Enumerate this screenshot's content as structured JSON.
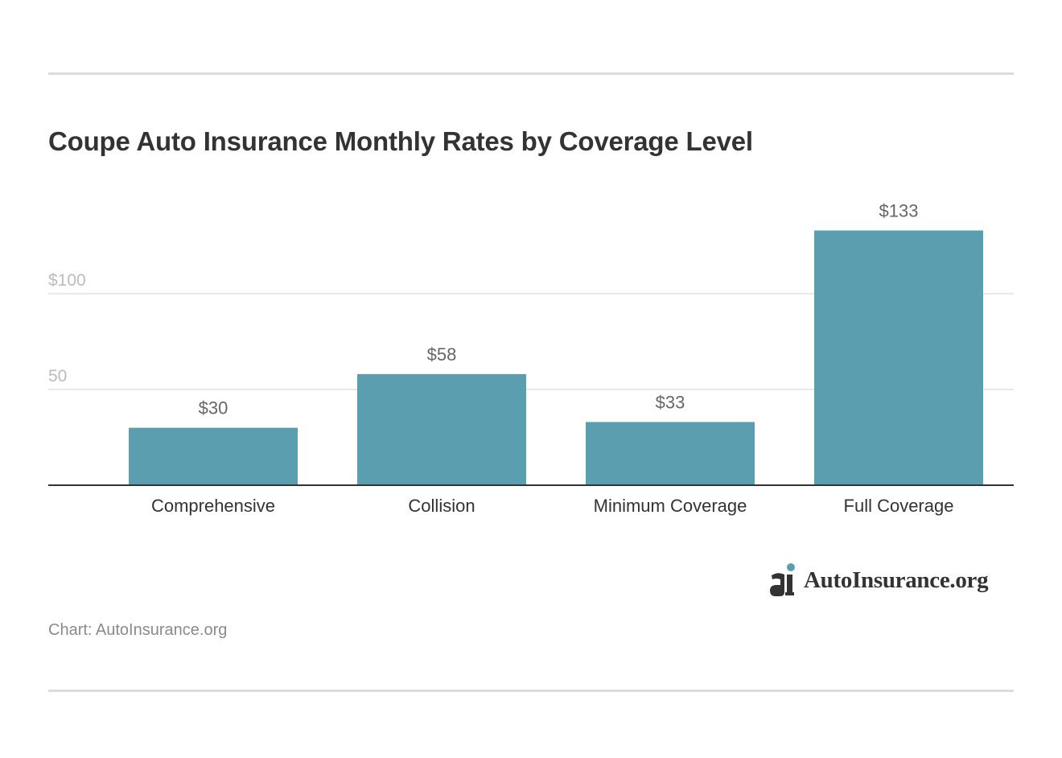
{
  "chart_title": "Coupe Auto Insurance Monthly Rates by Coverage Level",
  "chart_data": {
    "type": "bar",
    "title": "Coupe Auto Insurance Monthly Rates by Coverage Level",
    "categories": [
      "Comprehensive",
      "Collision",
      "Minimum Coverage",
      "Full Coverage"
    ],
    "values": [
      30,
      58,
      33,
      133
    ],
    "value_labels": [
      "$30",
      "$58",
      "$33",
      "$133"
    ],
    "y_ticks": [
      {
        "value": 50,
        "label": "50"
      },
      {
        "value": 100,
        "label": "$100"
      }
    ],
    "ylim": [
      0,
      133
    ],
    "xlabel": "",
    "ylabel": "",
    "grid": true,
    "bar_color": "#5b9eb0"
  },
  "logo": {
    "text": "AutoInsurance.org",
    "accent_color": "#5b9eb0"
  },
  "source": "Chart: AutoInsurance.org"
}
